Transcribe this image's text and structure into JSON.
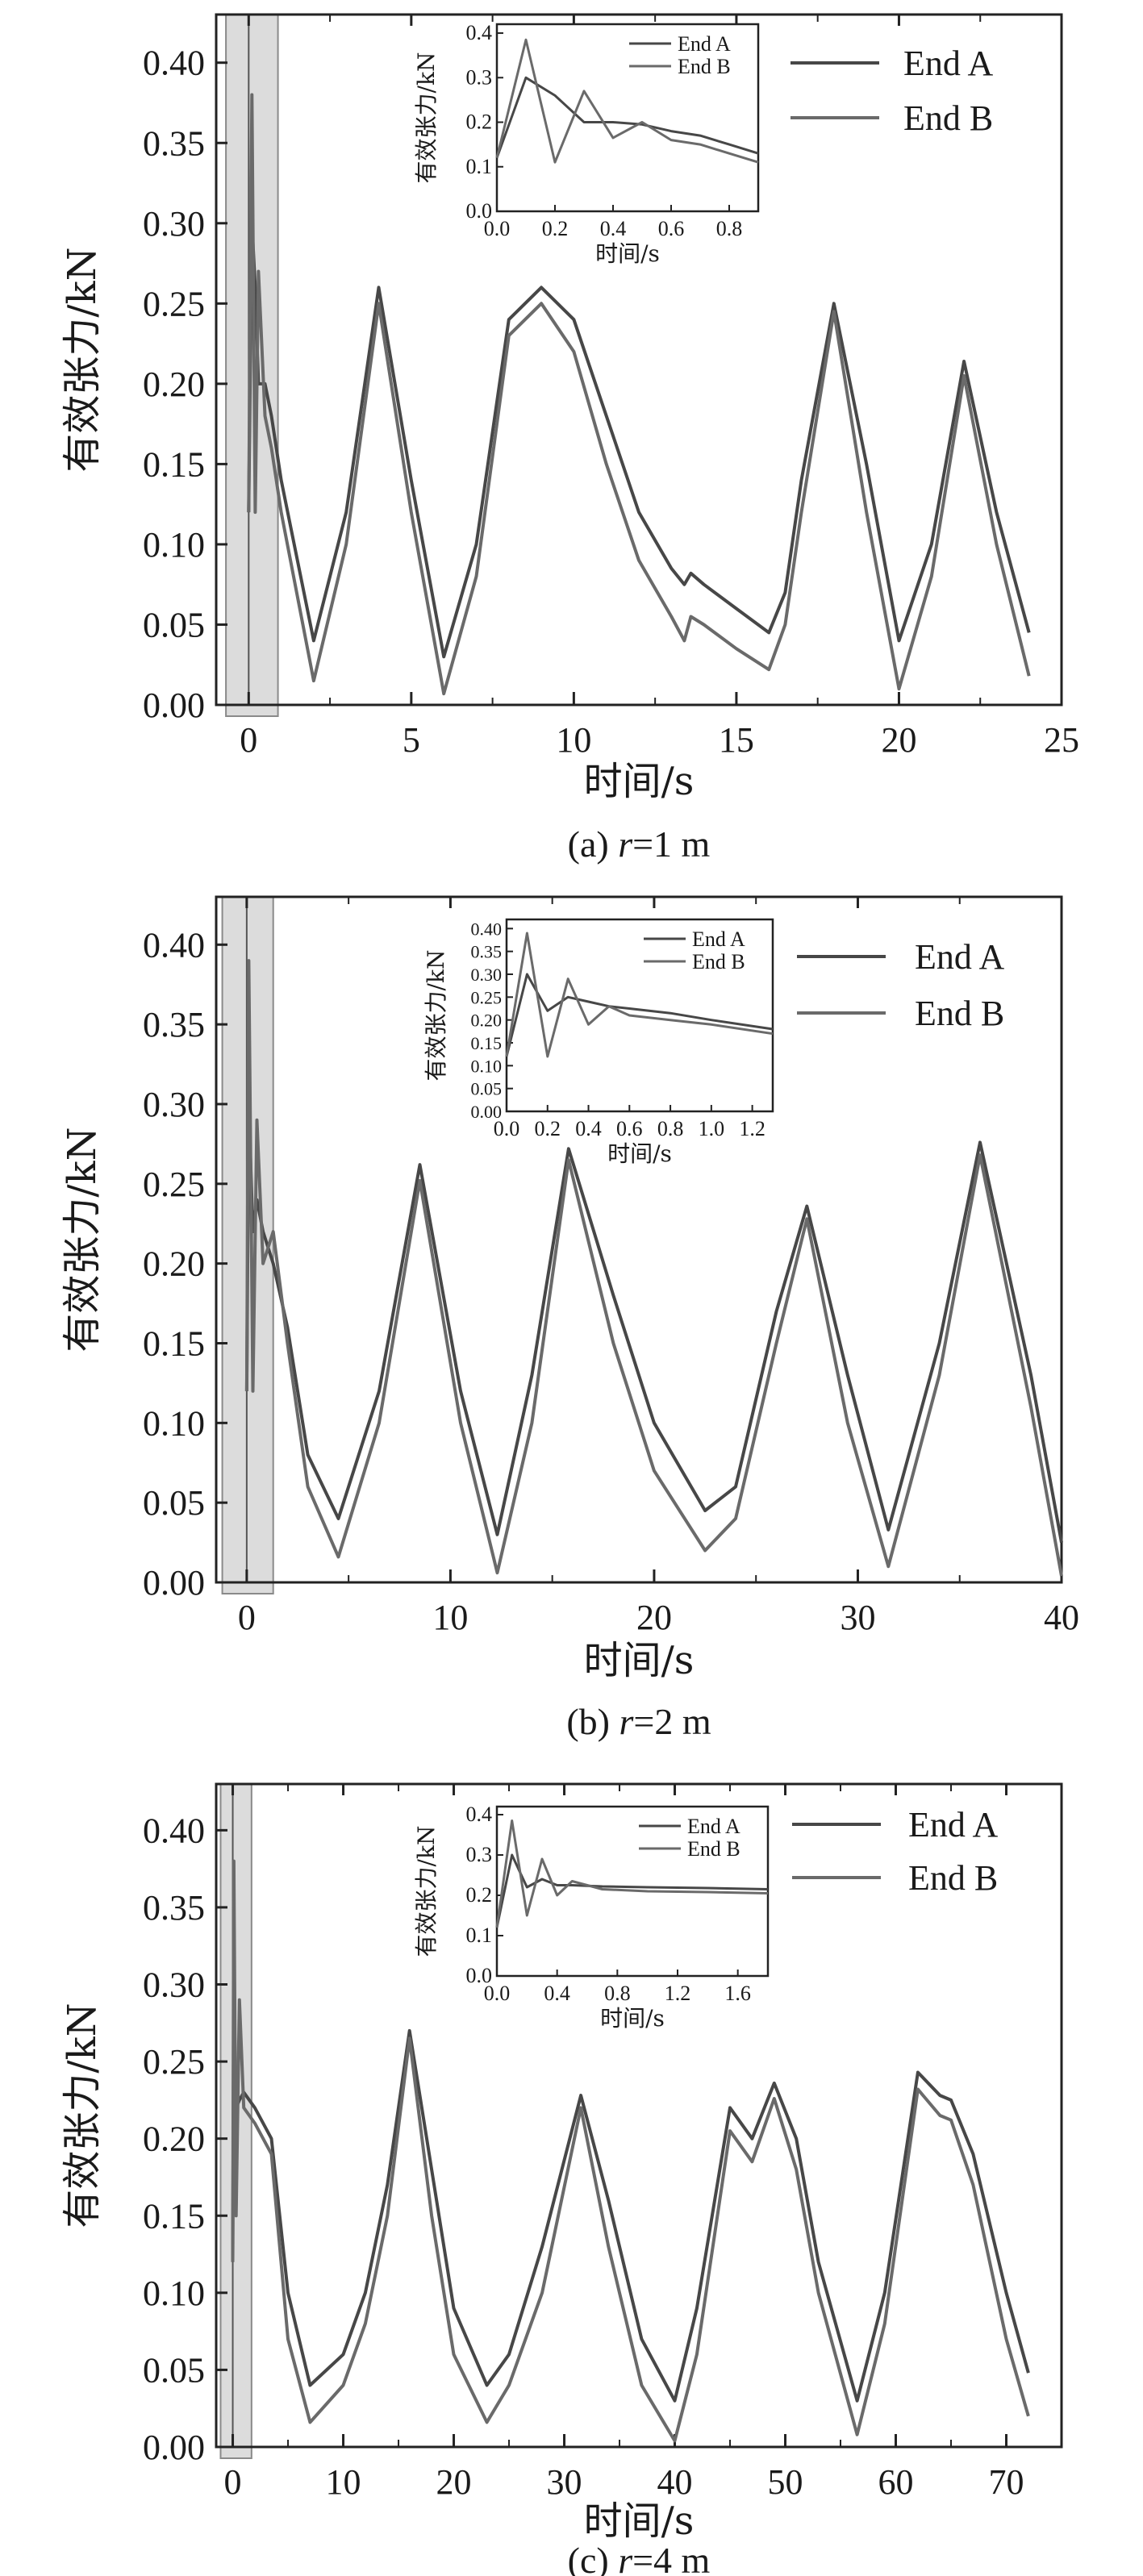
{
  "chart_data": [
    {
      "type": "line",
      "caption_prefix": "(a) ",
      "caption_var": "r",
      "caption_suffix": "=1 m",
      "xlabel": "时间/s",
      "ylabel": "有效张力/kN",
      "xlim": [
        -1,
        25
      ],
      "ylim": [
        0,
        0.43
      ],
      "xticks": [
        0,
        5,
        10,
        15,
        20,
        25
      ],
      "xtick_labels": [
        "0",
        "5",
        "10",
        "15",
        "20",
        "25"
      ],
      "yticks": [
        0,
        0.05,
        0.1,
        0.15,
        0.2,
        0.25,
        0.3,
        0.35,
        0.4
      ],
      "ytick_labels": [
        "0.00",
        "0.05",
        "0.10",
        "0.15",
        "0.20",
        "0.25",
        "0.30",
        "0.35",
        "0.40"
      ],
      "highlight_range": [
        -0.7,
        0.9
      ],
      "legend": "top-right",
      "colors": {
        "End A": "#474747",
        "End B": "#6a6a6a"
      },
      "series": [
        {
          "name": "End A",
          "x": [
            0,
            0.1,
            0.2,
            0.3,
            0.5,
            0.7,
            1,
            2,
            3,
            4,
            5,
            6,
            7,
            8,
            9,
            10,
            11,
            12,
            13,
            13.4,
            13.6,
            14,
            15,
            16,
            16.5,
            17,
            18,
            19,
            20,
            21,
            22,
            23,
            24
          ],
          "y": [
            0.12,
            0.3,
            0.26,
            0.2,
            0.2,
            0.18,
            0.14,
            0.04,
            0.12,
            0.26,
            0.14,
            0.03,
            0.1,
            0.24,
            0.26,
            0.24,
            0.18,
            0.12,
            0.085,
            0.075,
            0.082,
            0.075,
            0.06,
            0.045,
            0.07,
            0.14,
            0.25,
            0.15,
            0.04,
            0.1,
            0.214,
            0.12,
            0.045
          ]
        },
        {
          "name": "End B",
          "x": [
            0,
            0.1,
            0.2,
            0.3,
            0.5,
            0.7,
            1,
            2,
            3,
            4,
            5,
            6,
            7,
            8,
            9,
            10,
            11,
            12,
            13,
            13.4,
            13.6,
            14,
            15,
            16,
            16.5,
            17,
            18,
            19,
            20,
            21,
            22,
            23,
            24
          ],
          "y": [
            0.12,
            0.38,
            0.12,
            0.27,
            0.18,
            0.16,
            0.12,
            0.015,
            0.1,
            0.25,
            0.12,
            0.007,
            0.08,
            0.23,
            0.25,
            0.22,
            0.15,
            0.09,
            0.055,
            0.04,
            0.055,
            0.05,
            0.035,
            0.022,
            0.05,
            0.12,
            0.245,
            0.12,
            0.01,
            0.08,
            0.205,
            0.1,
            0.018
          ]
        }
      ],
      "inset": {
        "xlabel": "时间/s",
        "ylabel": "有效张力/kN",
        "xlim": [
          0,
          0.9
        ],
        "ylim": [
          0,
          0.42
        ],
        "xticks": [
          0,
          0.2,
          0.4,
          0.6,
          0.8
        ],
        "xtick_labels": [
          "0.0",
          "0.2",
          "0.4",
          "0.6",
          "0.8"
        ],
        "yticks": [
          0,
          0.1,
          0.2,
          0.3,
          0.4
        ],
        "ytick_labels": [
          "0.0",
          "0.1",
          "0.2",
          "0.3",
          "0.4"
        ],
        "series": [
          {
            "name": "End A",
            "x": [
              0,
              0.1,
              0.2,
              0.3,
              0.4,
              0.5,
              0.6,
              0.7,
              0.8,
              0.9
            ],
            "y": [
              0.12,
              0.3,
              0.26,
              0.2,
              0.2,
              0.195,
              0.18,
              0.17,
              0.15,
              0.13
            ]
          },
          {
            "name": "End B",
            "x": [
              0,
              0.1,
              0.2,
              0.3,
              0.4,
              0.5,
              0.6,
              0.7,
              0.8,
              0.9
            ],
            "y": [
              0.12,
              0.385,
              0.11,
              0.27,
              0.165,
              0.2,
              0.16,
              0.15,
              0.13,
              0.11
            ]
          }
        ]
      }
    },
    {
      "type": "line",
      "caption_prefix": "(b) ",
      "caption_var": "r",
      "caption_suffix": "=2 m",
      "xlabel": "时间/s",
      "ylabel": "有效张力/kN",
      "xlim": [
        -1.5,
        40
      ],
      "ylim": [
        0,
        0.43
      ],
      "xticks": [
        0,
        10,
        20,
        30,
        40
      ],
      "xtick_labels": [
        "0",
        "10",
        "20",
        "30",
        "40"
      ],
      "yticks": [
        0,
        0.05,
        0.1,
        0.15,
        0.2,
        0.25,
        0.3,
        0.35,
        0.4
      ],
      "ytick_labels": [
        "0.00",
        "0.05",
        "0.10",
        "0.15",
        "0.20",
        "0.25",
        "0.30",
        "0.35",
        "0.40"
      ],
      "highlight_range": [
        -1.2,
        1.3
      ],
      "legend": "top-right",
      "colors": {
        "End A": "#474747",
        "End B": "#6a6a6a"
      },
      "series": [
        {
          "name": "End A",
          "x": [
            0,
            0.1,
            0.3,
            0.5,
            0.8,
            1.3,
            2,
            3,
            4.5,
            6.5,
            8.5,
            10.5,
            12.3,
            14,
            15.8,
            18,
            20,
            22.5,
            24,
            26,
            27.5,
            29.5,
            31.5,
            34,
            36,
            38.5,
            40
          ],
          "y": [
            0.12,
            0.3,
            0.22,
            0.24,
            0.22,
            0.2,
            0.16,
            0.08,
            0.04,
            0.12,
            0.262,
            0.12,
            0.03,
            0.13,
            0.272,
            0.18,
            0.1,
            0.045,
            0.06,
            0.17,
            0.236,
            0.13,
            0.033,
            0.15,
            0.276,
            0.13,
            0.025
          ]
        },
        {
          "name": "End B",
          "x": [
            0,
            0.1,
            0.3,
            0.5,
            0.8,
            1.3,
            2,
            3,
            4.5,
            6.5,
            8.5,
            10.5,
            12.3,
            14,
            15.8,
            18,
            20,
            22.5,
            24,
            26,
            27.5,
            29.5,
            31.5,
            34,
            36,
            38.5,
            40
          ],
          "y": [
            0.12,
            0.39,
            0.12,
            0.29,
            0.2,
            0.22,
            0.15,
            0.06,
            0.016,
            0.1,
            0.252,
            0.1,
            0.006,
            0.1,
            0.265,
            0.15,
            0.07,
            0.02,
            0.04,
            0.15,
            0.228,
            0.1,
            0.01,
            0.13,
            0.268,
            0.11,
            0.004
          ]
        }
      ],
      "inset": {
        "xlabel": "时间/s",
        "ylabel": "有效张力/kN",
        "xlim": [
          0,
          1.3
        ],
        "ylim": [
          0,
          0.42
        ],
        "xticks": [
          0,
          0.2,
          0.4,
          0.6,
          0.8,
          1.0,
          1.2
        ],
        "xtick_labels": [
          "0.0",
          "0.2",
          "0.4",
          "0.6",
          "0.8",
          "1.0",
          "1.2"
        ],
        "yticks": [
          0,
          0.05,
          0.1,
          0.15,
          0.2,
          0.25,
          0.3,
          0.35,
          0.4
        ],
        "ytick_labels": [
          "0.00",
          "0.05",
          "0.10",
          "0.15",
          "0.20",
          "0.25",
          "0.30",
          "0.35",
          "0.40"
        ],
        "series": [
          {
            "name": "End A",
            "x": [
              0,
              0.1,
              0.2,
              0.3,
              0.4,
              0.5,
              0.6,
              0.8,
              1.0,
              1.3
            ],
            "y": [
              0.12,
              0.3,
              0.22,
              0.25,
              0.24,
              0.23,
              0.225,
              0.215,
              0.2,
              0.18
            ]
          },
          {
            "name": "End B",
            "x": [
              0,
              0.1,
              0.2,
              0.3,
              0.4,
              0.5,
              0.6,
              0.8,
              1.0,
              1.3
            ],
            "y": [
              0.12,
              0.39,
              0.12,
              0.29,
              0.19,
              0.23,
              0.21,
              0.2,
              0.19,
              0.17
            ]
          }
        ]
      }
    },
    {
      "type": "line",
      "caption_prefix": "(c) ",
      "caption_var": "r",
      "caption_suffix": "=4 m",
      "xlabel": "时间/s",
      "ylabel": "有效张力/kN",
      "xlim": [
        -1.5,
        75
      ],
      "ylim": [
        0,
        0.43
      ],
      "xticks": [
        0,
        10,
        20,
        30,
        40,
        50,
        60,
        70
      ],
      "xtick_labels": [
        "0",
        "10",
        "20",
        "30",
        "40",
        "50",
        "60",
        "70"
      ],
      "yticks": [
        0,
        0.05,
        0.1,
        0.15,
        0.2,
        0.25,
        0.3,
        0.35,
        0.4
      ],
      "ytick_labels": [
        "0.00",
        "0.05",
        "0.10",
        "0.15",
        "0.20",
        "0.25",
        "0.30",
        "0.35",
        "0.40"
      ],
      "highlight_range": [
        -1.1,
        1.7
      ],
      "legend": "top-right",
      "colors": {
        "End A": "#474747",
        "End B": "#6a6a6a"
      },
      "series": [
        {
          "name": "End A",
          "x": [
            0,
            0.1,
            0.3,
            0.6,
            1,
            2,
            3.5,
            5,
            7,
            10,
            12,
            14,
            16,
            18,
            20,
            23,
            25,
            28,
            31.5,
            34,
            37,
            40,
            42,
            45,
            47,
            49,
            51,
            53,
            56.5,
            59,
            62,
            64,
            65,
            67,
            70,
            72
          ],
          "y": [
            0.12,
            0.3,
            0.22,
            0.225,
            0.23,
            0.22,
            0.2,
            0.1,
            0.04,
            0.06,
            0.1,
            0.17,
            0.27,
            0.18,
            0.09,
            0.04,
            0.06,
            0.13,
            0.228,
            0.16,
            0.07,
            0.03,
            0.09,
            0.22,
            0.2,
            0.236,
            0.2,
            0.12,
            0.03,
            0.1,
            0.243,
            0.228,
            0.225,
            0.19,
            0.1,
            0.048
          ]
        },
        {
          "name": "End B",
          "x": [
            0,
            0.1,
            0.3,
            0.6,
            1,
            2,
            3.5,
            5,
            7,
            10,
            12,
            14,
            16,
            18,
            20,
            23,
            25,
            28,
            31.5,
            34,
            37,
            40,
            42,
            45,
            47,
            49,
            51,
            53,
            56.5,
            59,
            62,
            64,
            65,
            67,
            70,
            72
          ],
          "y": [
            0.12,
            0.38,
            0.15,
            0.29,
            0.22,
            0.21,
            0.19,
            0.07,
            0.016,
            0.04,
            0.08,
            0.15,
            0.265,
            0.15,
            0.06,
            0.016,
            0.04,
            0.1,
            0.22,
            0.13,
            0.04,
            0.004,
            0.06,
            0.205,
            0.185,
            0.226,
            0.18,
            0.1,
            0.008,
            0.08,
            0.232,
            0.215,
            0.212,
            0.17,
            0.07,
            0.02
          ]
        }
      ],
      "inset": {
        "xlabel": "时间/s",
        "ylabel": "有效张力/kN",
        "xlim": [
          0,
          1.8
        ],
        "ylim": [
          0,
          0.42
        ],
        "xticks": [
          0,
          0.4,
          0.8,
          1.2,
          1.6
        ],
        "xtick_labels": [
          "0.0",
          "0.4",
          "0.8",
          "1.2",
          "1.6"
        ],
        "yticks": [
          0,
          0.1,
          0.2,
          0.3,
          0.4
        ],
        "ytick_labels": [
          "0.0",
          "0.1",
          "0.2",
          "0.3",
          "0.4"
        ],
        "series": [
          {
            "name": "End A",
            "x": [
              0,
              0.1,
              0.2,
              0.3,
              0.4,
              0.5,
              0.7,
              1.0,
              1.4,
              1.8
            ],
            "y": [
              0.12,
              0.3,
              0.22,
              0.24,
              0.225,
              0.225,
              0.222,
              0.22,
              0.218,
              0.215
            ]
          },
          {
            "name": "End B",
            "x": [
              0,
              0.1,
              0.2,
              0.3,
              0.4,
              0.5,
              0.7,
              1.0,
              1.4,
              1.8
            ],
            "y": [
              0.12,
              0.385,
              0.15,
              0.29,
              0.2,
              0.235,
              0.215,
              0.21,
              0.208,
              0.205
            ]
          }
        ]
      }
    }
  ]
}
